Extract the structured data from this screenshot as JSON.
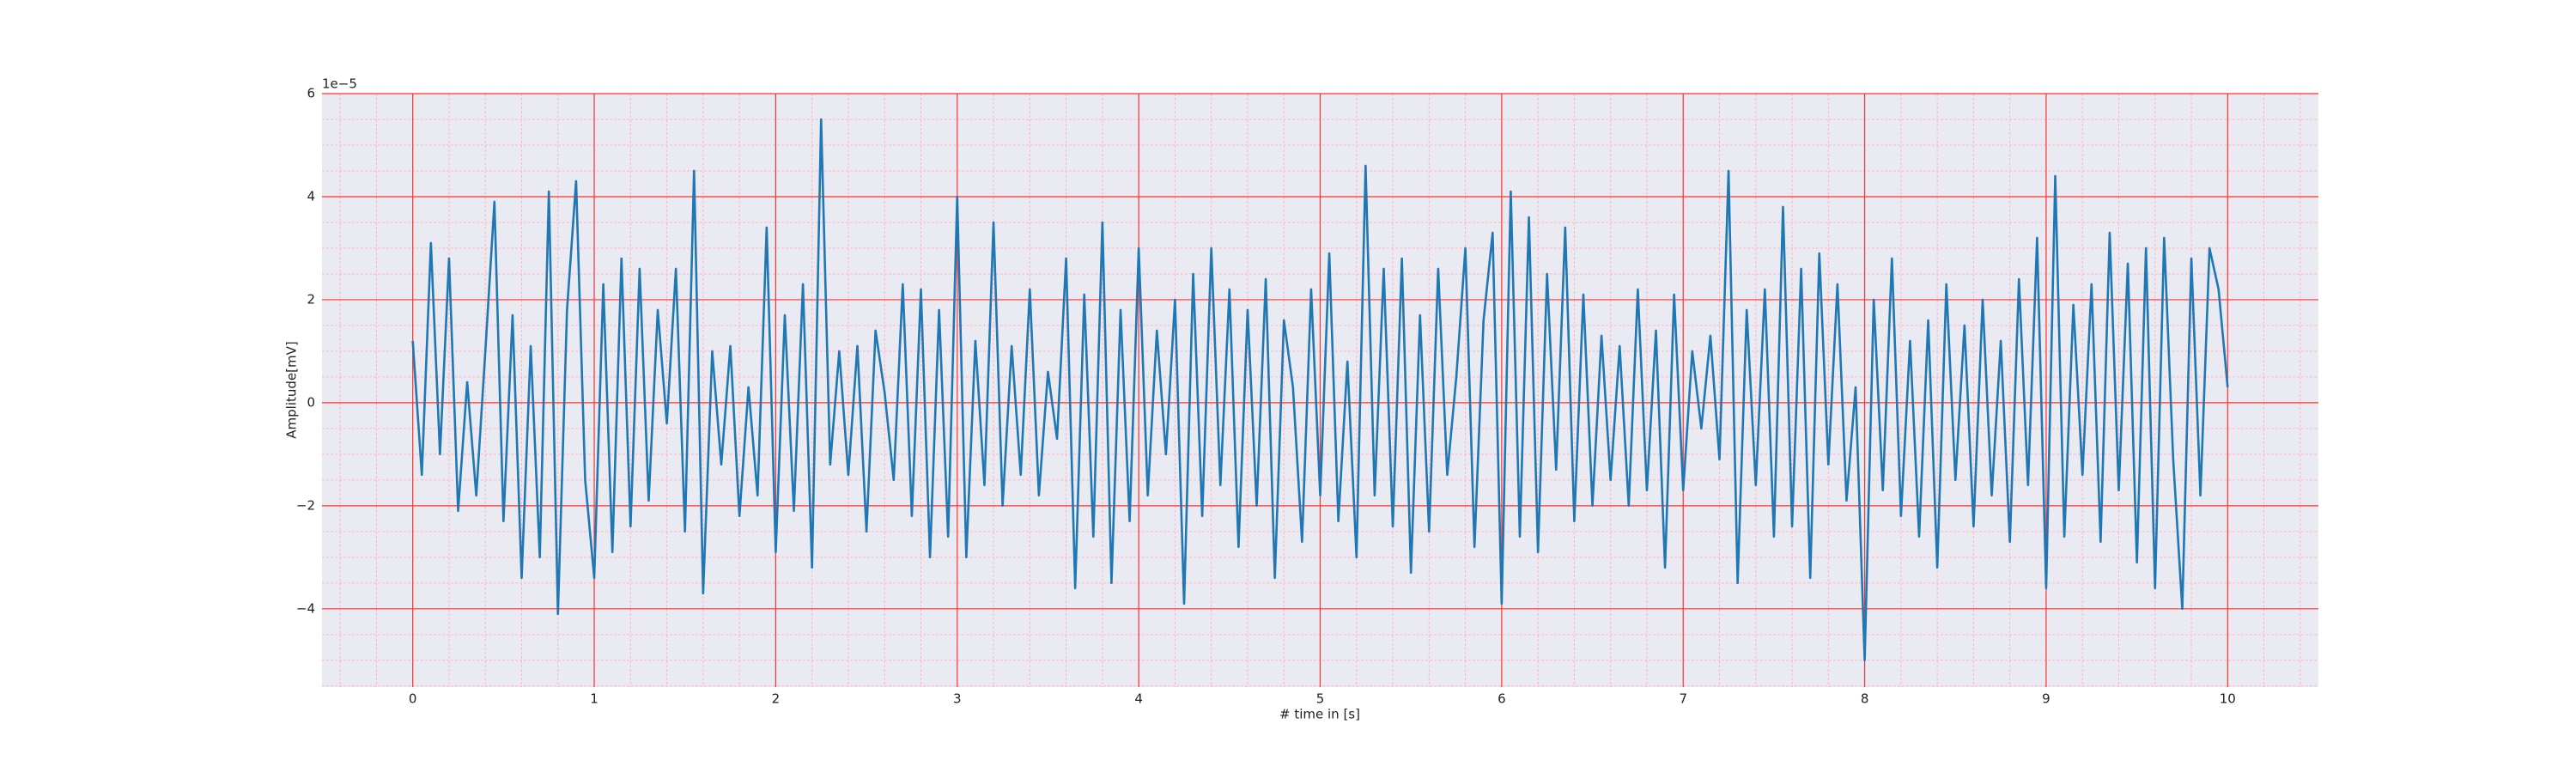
{
  "chart_data": {
    "type": "line",
    "xlabel": "# time in [s]",
    "ylabel": "Amplitude[mV]",
    "y_offset_label": "1e−5",
    "color": "#1f77b4",
    "background": "#eaeaf2",
    "grid": true,
    "grid_color": "#ff3030",
    "minor_grid": true,
    "minor_grid_color": "#ffb6c1",
    "xlim": [
      -0.5,
      10.5
    ],
    "ylim": [
      -5.52,
      6
    ],
    "xticks": [
      0,
      1,
      2,
      3,
      4,
      5,
      6,
      7,
      8,
      9,
      10
    ],
    "yticks": [
      {
        "value": -4,
        "label": "−4"
      },
      {
        "value": -2,
        "label": "−2"
      },
      0,
      2,
      4,
      6
    ],
    "xminorticks": [
      -0.4,
      -0.2,
      0.2,
      0.4,
      0.6,
      0.8,
      1.2,
      1.4,
      1.6,
      1.8,
      2.2,
      2.4,
      2.6,
      2.8,
      3.2,
      3.4,
      3.6,
      3.8,
      4.2,
      4.4,
      4.6,
      4.8,
      5.2,
      5.4,
      5.6,
      5.8,
      6.2,
      6.4,
      6.6,
      6.8,
      7.2,
      7.4,
      7.6,
      7.8,
      8.2,
      8.4,
      8.6,
      8.8,
      9.2,
      9.4,
      9.6,
      9.8,
      10.2,
      10.4
    ],
    "yminorticks": [
      -5.5,
      -5,
      -4.5,
      -3.5,
      -3,
      -2.5,
      -1.5,
      -1,
      -0.5,
      0.5,
      1,
      1.5,
      2.5,
      3,
      3.5,
      4.5,
      5,
      5.5
    ],
    "x": [
      0,
      0.05,
      0.1,
      0.15,
      0.2,
      0.25,
      0.3,
      0.35,
      0.4,
      0.45,
      0.5,
      0.55,
      0.6,
      0.65,
      0.7,
      0.75,
      0.8,
      0.85,
      0.9,
      0.95,
      1,
      1.05,
      1.1,
      1.15,
      1.2,
      1.25,
      1.3,
      1.35,
      1.4,
      1.45,
      1.5,
      1.55,
      1.6,
      1.65,
      1.7,
      1.75,
      1.8,
      1.85,
      1.9,
      1.95,
      2,
      2.05,
      2.1,
      2.15,
      2.2,
      2.25,
      2.3,
      2.35,
      2.4,
      2.45,
      2.5,
      2.55,
      2.6,
      2.65,
      2.7,
      2.75,
      2.8,
      2.85,
      2.9,
      2.95,
      3,
      3.05,
      3.1,
      3.15,
      3.2,
      3.25,
      3.3,
      3.35,
      3.4,
      3.45,
      3.5,
      3.55,
      3.6,
      3.65,
      3.7,
      3.75,
      3.8,
      3.85,
      3.9,
      3.95,
      4,
      4.05,
      4.1,
      4.15,
      4.2,
      4.25,
      4.3,
      4.35,
      4.4,
      4.45,
      4.5,
      4.55,
      4.6,
      4.65,
      4.7,
      4.75,
      4.8,
      4.85,
      4.9,
      4.95,
      5,
      5.05,
      5.1,
      5.15,
      5.2,
      5.25,
      5.3,
      5.35,
      5.4,
      5.45,
      5.5,
      5.55,
      5.6,
      5.65,
      5.7,
      5.75,
      5.8,
      5.85,
      5.9,
      5.95,
      6,
      6.05,
      6.1,
      6.15,
      6.2,
      6.25,
      6.3,
      6.35,
      6.4,
      6.45,
      6.5,
      6.55,
      6.6,
      6.65,
      6.7,
      6.75,
      6.8,
      6.85,
      6.9,
      6.95,
      7,
      7.05,
      7.1,
      7.15,
      7.2,
      7.25,
      7.3,
      7.35,
      7.4,
      7.45,
      7.5,
      7.55,
      7.6,
      7.65,
      7.7,
      7.75,
      7.8,
      7.85,
      7.9,
      7.95,
      8,
      8.05,
      8.1,
      8.15,
      8.2,
      8.25,
      8.3,
      8.35,
      8.4,
      8.45,
      8.5,
      8.55,
      8.6,
      8.65,
      8.7,
      8.75,
      8.8,
      8.85,
      8.9,
      8.95,
      9,
      9.05,
      9.1,
      9.15,
      9.2,
      9.25,
      9.3,
      9.35,
      9.4,
      9.45,
      9.5,
      9.55,
      9.6,
      9.65,
      9.7,
      9.75,
      9.8,
      9.85,
      9.9,
      9.95,
      10
    ],
    "values": [
      1.2,
      -1.4,
      3.1,
      -1.0,
      2.8,
      -2.1,
      0.4,
      -1.8,
      1.0,
      3.9,
      -2.3,
      1.7,
      -3.4,
      1.1,
      -3.0,
      4.1,
      -4.1,
      1.8,
      4.3,
      -1.5,
      -3.4,
      2.3,
      -2.9,
      2.8,
      -2.4,
      2.6,
      -1.9,
      1.8,
      -0.4,
      2.6,
      -2.5,
      4.5,
      -3.7,
      1.0,
      -1.2,
      1.1,
      -2.2,
      0.3,
      -1.8,
      3.4,
      -2.9,
      1.7,
      -2.1,
      2.3,
      -3.2,
      5.5,
      -1.2,
      1.0,
      -1.4,
      1.1,
      -2.5,
      1.4,
      0.2,
      -1.5,
      2.3,
      -2.2,
      2.2,
      -3.0,
      1.8,
      -2.6,
      4.0,
      -3.0,
      1.2,
      -1.6,
      3.5,
      -2.0,
      1.1,
      -1.4,
      2.2,
      -1.8,
      0.6,
      -0.7,
      2.8,
      -3.6,
      2.1,
      -2.6,
      3.5,
      -3.5,
      1.8,
      -2.3,
      3.0,
      -1.8,
      1.4,
      -1.0,
      2.0,
      -3.9,
      2.5,
      -2.2,
      3.0,
      -1.6,
      2.2,
      -2.8,
      1.8,
      -2.0,
      2.4,
      -3.4,
      1.6,
      0.3,
      -2.7,
      2.2,
      -1.8,
      2.9,
      -2.3,
      0.8,
      -3.0,
      4.6,
      -1.8,
      2.6,
      -2.4,
      2.8,
      -3.3,
      1.7,
      -2.5,
      2.6,
      -1.4,
      0.5,
      3.0,
      -2.8,
      1.6,
      3.3,
      -3.9,
      4.1,
      -2.6,
      3.6,
      -2.9,
      2.5,
      -1.3,
      3.4,
      -2.3,
      2.1,
      -2.0,
      1.3,
      -1.5,
      1.1,
      -2.0,
      2.2,
      -1.7,
      1.4,
      -3.2,
      2.1,
      -1.7,
      1.0,
      -0.5,
      1.3,
      -1.1,
      4.5,
      -3.5,
      1.8,
      -1.6,
      2.2,
      -2.6,
      3.8,
      -2.4,
      2.6,
      -3.4,
      2.9,
      -1.2,
      2.3,
      -1.9,
      0.3,
      -5.0,
      2.0,
      -1.7,
      2.8,
      -2.2,
      1.2,
      -2.6,
      1.6,
      -3.2,
      2.3,
      -1.5,
      1.5,
      -2.4,
      2.0,
      -1.8,
      1.2,
      -2.7,
      2.4,
      -1.6,
      3.2,
      -3.6,
      4.4,
      -2.6,
      1.9,
      -1.4,
      2.3,
      -2.7,
      3.3,
      -1.7,
      2.7,
      -3.1,
      3.0,
      -3.6,
      3.2,
      -1.1,
      -4.0,
      2.8,
      -1.8,
      3.0,
      2.2,
      0.3
    ]
  }
}
